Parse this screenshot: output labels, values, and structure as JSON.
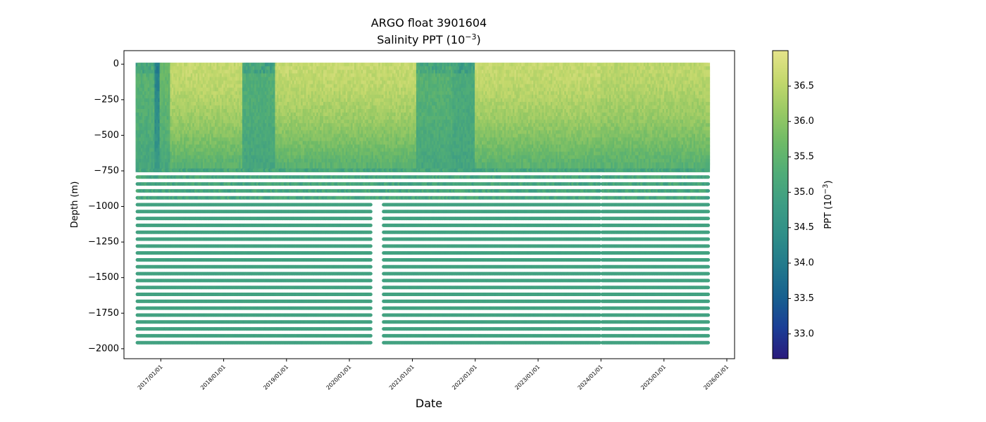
{
  "chart_data": {
    "type": "scatter",
    "title": "ARGO float 3901604",
    "subtitle": "Salinity PPT (10^-3)",
    "subtitle_base": "Salinity PPT (10",
    "subtitle_exp": "−3",
    "subtitle_end": ")",
    "xlabel": "Date",
    "ylabel": "Depth (m)",
    "colorbar_label_base": "PPT (10",
    "colorbar_label_exp": "−3",
    "colorbar_label_end": ")",
    "colormap": "haline",
    "colormap_stops": [
      "#2a1a7c",
      "#1b3e96",
      "#17608f",
      "#22798c",
      "#2f8e88",
      "#3d9d84",
      "#4fac78",
      "#6eba67",
      "#98c964",
      "#c3d86c",
      "#e5e38a"
    ],
    "xlim": [
      "2016-06-01",
      "2026-02-15"
    ],
    "ylim": [
      -2070,
      95
    ],
    "clim": [
      32.65,
      37.0
    ],
    "yticks": [
      0,
      -250,
      -500,
      -750,
      -1000,
      -1250,
      -1500,
      -1750,
      -2000
    ],
    "ytick_labels": [
      "0",
      "−250",
      "−500",
      "−750",
      "−1000",
      "−1250",
      "−1500",
      "−1750",
      "−2000"
    ],
    "xticks": [
      "2017-01-01",
      "2018-01-01",
      "2019-01-01",
      "2020-01-01",
      "2021-01-01",
      "2022-01-01",
      "2023-01-01",
      "2024-01-01",
      "2025-01-01",
      "2026-01-01"
    ],
    "xtick_labels": [
      "2017/01/01",
      "2018/01/01",
      "2019/01/01",
      "2020/01/01",
      "2021/01/01",
      "2022/01/01",
      "2023/01/01",
      "2024/01/01",
      "2025/01/01",
      "2026/01/01"
    ],
    "cbar_ticks": [
      33.0,
      33.5,
      34.0,
      34.5,
      35.0,
      35.5,
      36.0,
      36.5
    ],
    "cbar_tick_labels": [
      "33.0",
      "33.5",
      "34.0",
      "34.5",
      "35.0",
      "35.5",
      "36.0",
      "36.5"
    ],
    "grid": false,
    "profile_dates": {
      "first": "2016-08-20",
      "last": "2025-09-15"
    },
    "deep_salinity": 34.95,
    "gaps": [
      {
        "start": "2020-05-10",
        "end": "2020-07-20",
        "depth_below": -950
      },
      {
        "start": "2023-12-25",
        "end": "2024-01-08",
        "depth_below": 0
      }
    ],
    "surface_salinity_by_period": [
      {
        "start": "2016-08-20",
        "end": "2016-12-01",
        "salinity": 35.4
      },
      {
        "start": "2016-12-01",
        "end": "2017-01-01",
        "salinity": 34.2
      },
      {
        "start": "2017-01-01",
        "end": "2017-03-01",
        "salinity": 35.6
      },
      {
        "start": "2017-03-01",
        "end": "2018-05-01",
        "salinity": 36.6
      },
      {
        "start": "2018-05-01",
        "end": "2018-11-01",
        "salinity": 35.3
      },
      {
        "start": "2018-11-01",
        "end": "2021-02-01",
        "salinity": 36.6
      },
      {
        "start": "2021-02-01",
        "end": "2021-09-01",
        "salinity": 35.4
      },
      {
        "start": "2021-09-01",
        "end": "2022-01-10",
        "salinity": 35.2
      },
      {
        "start": "2022-01-10",
        "end": "2023-12-25",
        "salinity": 36.6
      },
      {
        "start": "2024-01-08",
        "end": "2025-09-15",
        "salinity": 36.5
      }
    ]
  }
}
